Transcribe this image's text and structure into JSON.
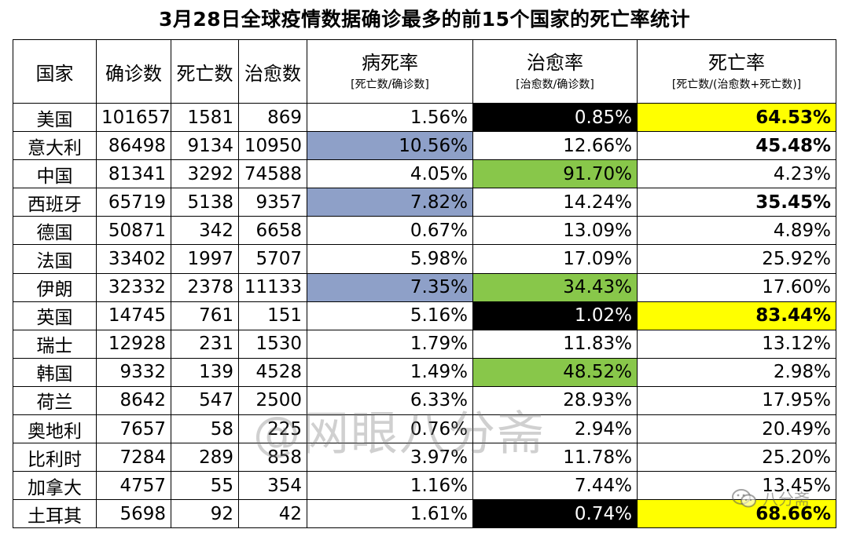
{
  "title": "3月28日全球疫情数据确诊最多的前15个国家的死亡率统计",
  "headers": {
    "country": "国家",
    "confirmed": "确诊数",
    "deaths": "死亡数",
    "recovered": "治愈数",
    "case_fatality": {
      "main": "病死率",
      "sub": "[死亡数/确诊数]"
    },
    "recovery_rate": {
      "main": "治愈率",
      "sub": "[治愈数/确诊数]"
    },
    "death_rate": {
      "main": "死亡率",
      "sub": "[死亡数/(治愈数+死亡数)]"
    }
  },
  "highlight_colors": {
    "blue": "#8ea0c8",
    "green": "#88c74a",
    "black": "#000000",
    "yellow": "#ffff00"
  },
  "rows": [
    {
      "country": "美国",
      "confirmed": "101657",
      "deaths": "1581",
      "recovered": "869",
      "cfr": "1.56%",
      "rr": "0.85%",
      "dr": "64.53%"
    },
    {
      "country": "意大利",
      "confirmed": "86498",
      "deaths": "9134",
      "recovered": "10950",
      "cfr": "10.56%",
      "rr": "12.66%",
      "dr": "45.48%"
    },
    {
      "country": "中国",
      "confirmed": "81341",
      "deaths": "3292",
      "recovered": "74588",
      "cfr": "4.05%",
      "rr": "91.70%",
      "dr": "4.23%"
    },
    {
      "country": "西班牙",
      "confirmed": "65719",
      "deaths": "5138",
      "recovered": "9357",
      "cfr": "7.82%",
      "rr": "14.24%",
      "dr": "35.45%"
    },
    {
      "country": "德国",
      "confirmed": "50871",
      "deaths": "342",
      "recovered": "6658",
      "cfr": "0.67%",
      "rr": "13.09%",
      "dr": "4.89%"
    },
    {
      "country": "法国",
      "confirmed": "33402",
      "deaths": "1997",
      "recovered": "5707",
      "cfr": "5.98%",
      "rr": "17.09%",
      "dr": "25.92%"
    },
    {
      "country": "伊朗",
      "confirmed": "32332",
      "deaths": "2378",
      "recovered": "11133",
      "cfr": "7.35%",
      "rr": "34.43%",
      "dr": "17.60%"
    },
    {
      "country": "英国",
      "confirmed": "14745",
      "deaths": "761",
      "recovered": "151",
      "cfr": "5.16%",
      "rr": "1.02%",
      "dr": "83.44%"
    },
    {
      "country": "瑞士",
      "confirmed": "12928",
      "deaths": "231",
      "recovered": "1530",
      "cfr": "1.79%",
      "rr": "11.83%",
      "dr": "13.12%"
    },
    {
      "country": "韩国",
      "confirmed": "9332",
      "deaths": "139",
      "recovered": "4528",
      "cfr": "1.49%",
      "rr": "48.52%",
      "dr": "2.98%"
    },
    {
      "country": "荷兰",
      "confirmed": "8642",
      "deaths": "547",
      "recovered": "2500",
      "cfr": "6.33%",
      "rr": "28.93%",
      "dr": "17.95%"
    },
    {
      "country": "奥地利",
      "confirmed": "7657",
      "deaths": "58",
      "recovered": "225",
      "cfr": "0.76%",
      "rr": "2.94%",
      "dr": "20.49%"
    },
    {
      "country": "比利时",
      "confirmed": "7284",
      "deaths": "289",
      "recovered": "858",
      "cfr": "3.97%",
      "rr": "11.78%",
      "dr": "25.20%"
    },
    {
      "country": "加拿大",
      "confirmed": "4757",
      "deaths": "55",
      "recovered": "354",
      "cfr": "1.16%",
      "rr": "7.44%",
      "dr": "13.45%"
    },
    {
      "country": "土耳其",
      "confirmed": "5698",
      "deaths": "92",
      "recovered": "42",
      "cfr": "1.61%",
      "rr": "0.74%",
      "dr": "68.66%"
    }
  ],
  "watermark": "@网眼八分斋",
  "badge": "八分斋"
}
